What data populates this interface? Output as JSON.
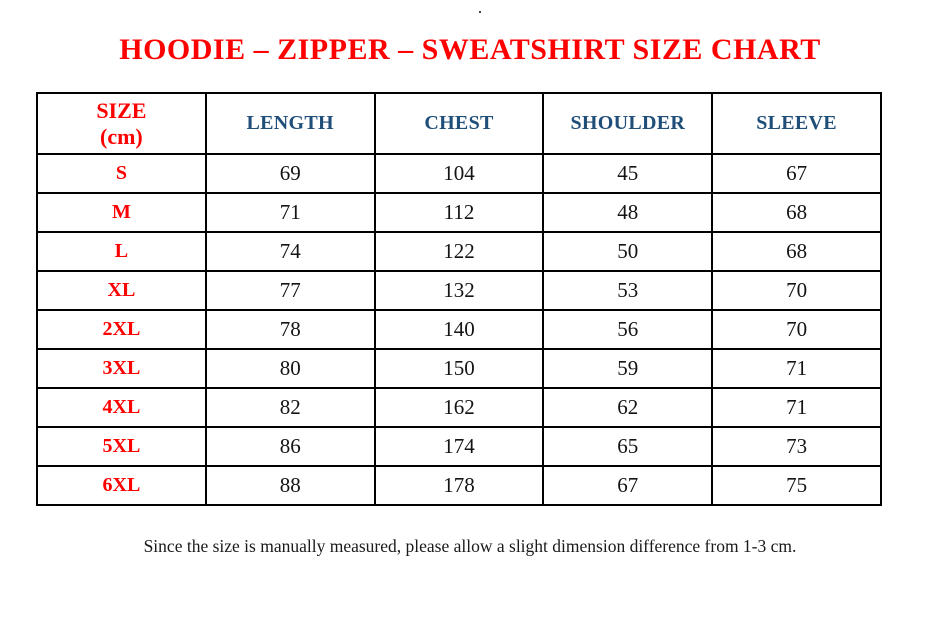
{
  "page": {
    "top_dot": "."
  },
  "title": "HOODIE – ZIPPER – SWEATSHIRT SIZE CHART",
  "table": {
    "size_header": {
      "line1": "SIZE",
      "line2": "(cm)"
    },
    "columns": [
      "LENGTH",
      "CHEST",
      "SHOULDER",
      "SLEEVE"
    ],
    "rows": [
      {
        "size": "S",
        "length": "69",
        "chest": "104",
        "shoulder": "45",
        "sleeve": "67"
      },
      {
        "size": "M",
        "length": "71",
        "chest": "112",
        "shoulder": "48",
        "sleeve": "68"
      },
      {
        "size": "L",
        "length": "74",
        "chest": "122",
        "shoulder": "50",
        "sleeve": "68"
      },
      {
        "size": "XL",
        "length": "77",
        "chest": "132",
        "shoulder": "53",
        "sleeve": "70"
      },
      {
        "size": "2XL",
        "length": "78",
        "chest": "140",
        "shoulder": "56",
        "sleeve": "70"
      },
      {
        "size": "3XL",
        "length": "80",
        "chest": "150",
        "shoulder": "59",
        "sleeve": "71"
      },
      {
        "size": "4XL",
        "length": "82",
        "chest": "162",
        "shoulder": "62",
        "sleeve": "71"
      },
      {
        "size": "5XL",
        "length": "86",
        "chest": "174",
        "shoulder": "65",
        "sleeve": "73"
      },
      {
        "size": "6XL",
        "length": "88",
        "chest": "178",
        "shoulder": "67",
        "sleeve": "75"
      }
    ]
  },
  "footer_note": "Since the size is manually measured, please allow a slight dimension difference from 1-3 cm.",
  "colors": {
    "title_red": "#ff0000",
    "header_blue": "#1f4e79",
    "body_text": "#141414",
    "border": "#000000"
  }
}
